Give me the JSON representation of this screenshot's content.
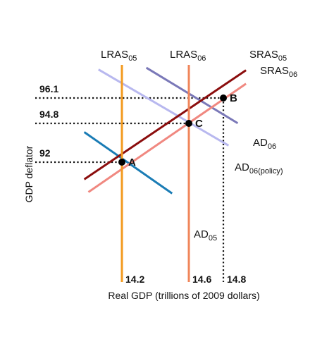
{
  "chart_data": {
    "type": "line",
    "title": "",
    "xlabel": "Real GDP (trillions of 2009 dollars)",
    "ylabel": "GDP deflator",
    "x_ticks": [
      {
        "value": 14.2,
        "label": "14.2"
      },
      {
        "value": 14.6,
        "label": "14.6"
      },
      {
        "value": 14.8,
        "label": "14.8"
      }
    ],
    "y_ticks": [
      {
        "value": 92,
        "label": "92"
      },
      {
        "value": 94.8,
        "label": "94.8"
      },
      {
        "value": 96.1,
        "label": "96.1"
      }
    ],
    "series": [
      {
        "key": "lras05",
        "base": "LRAS",
        "sub": "05",
        "kind": "vertical",
        "x": 14.2,
        "color": "#f39a1e"
      },
      {
        "key": "lras06",
        "base": "LRAS",
        "sub": "06",
        "kind": "vertical",
        "x": 14.6,
        "color": "#f0855a"
      },
      {
        "key": "sras05",
        "base": "SRAS",
        "sub": "05",
        "kind": "line",
        "color": "#8b0d0d",
        "points": [
          {
            "x": 13.975,
            "y": 90.76
          },
          {
            "x": 14.931,
            "y": 97.52
          }
        ]
      },
      {
        "key": "sras06",
        "base": "SRAS",
        "sub": "06",
        "kind": "line",
        "color": "#f08880",
        "points": [
          {
            "x": 14.0,
            "y": 89.84
          },
          {
            "x": 14.931,
            "y": 96.83
          }
        ]
      },
      {
        "key": "ad05",
        "base": "AD",
        "sub": "05",
        "kind": "line",
        "color": "#1a7cb5",
        "points": [
          {
            "x": 13.975,
            "y": 94.17
          },
          {
            "x": 14.5,
            "y": 89.74
          }
        ]
      },
      {
        "key": "ad06",
        "base": "AD",
        "sub": "06",
        "kind": "line",
        "color": "#7a78b8",
        "points": [
          {
            "x": 14.346,
            "y": 97.65
          },
          {
            "x": 14.883,
            "y": 94.81
          }
        ]
      },
      {
        "key": "ad06p",
        "base": "AD",
        "sub": "06(policy)",
        "kind": "line",
        "color": "#b8b8ef",
        "points": [
          {
            "x": 14.06,
            "y": 97.56
          },
          {
            "x": 14.83,
            "y": 93.2
          }
        ]
      }
    ],
    "points": [
      {
        "label": "A",
        "x": 14.2,
        "y": 92
      },
      {
        "label": "B",
        "x": 14.8,
        "y": 96.1
      },
      {
        "label": "C",
        "x": 14.6,
        "y": 94.8
      }
    ]
  }
}
